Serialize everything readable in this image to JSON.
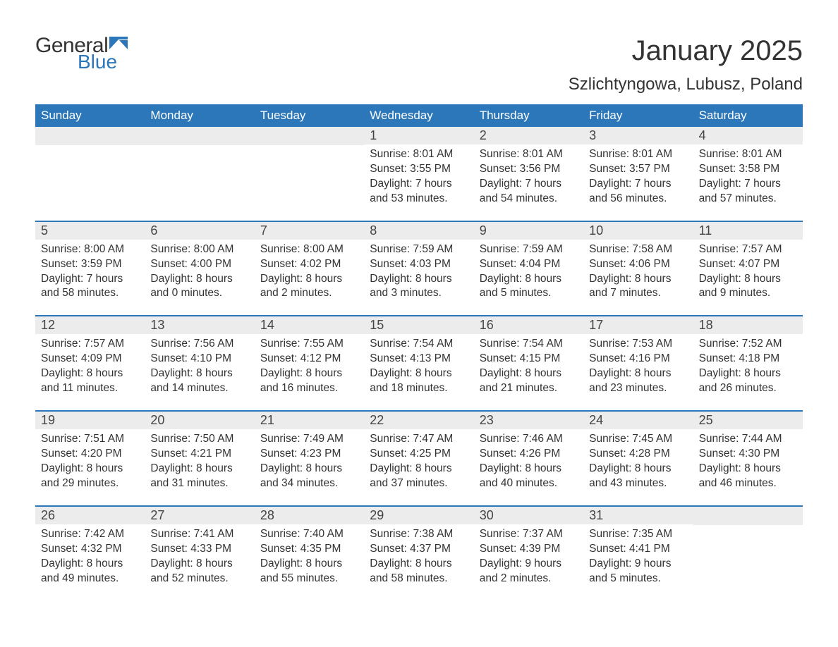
{
  "logo": {
    "text_general": "General",
    "text_blue": "Blue",
    "flag_color": "#2b77ba"
  },
  "title": "January 2025",
  "location": "Szlichtyngowa, Lubusz, Poland",
  "colors": {
    "header_bg": "#2b77ba",
    "header_text": "#ffffff",
    "daynum_bg": "#ececec",
    "text": "#333333",
    "row_border": "#2b77ba",
    "background": "#ffffff"
  },
  "typography": {
    "title_fontsize": 40,
    "location_fontsize": 24,
    "weekday_fontsize": 17,
    "daynum_fontsize": 18,
    "body_fontsize": 15.5,
    "font_family": "Arial"
  },
  "weekdays": [
    "Sunday",
    "Monday",
    "Tuesday",
    "Wednesday",
    "Thursday",
    "Friday",
    "Saturday"
  ],
  "weeks": [
    [
      {
        "blank": true
      },
      {
        "blank": true
      },
      {
        "blank": true
      },
      {
        "day": "1",
        "sunrise": "Sunrise: 8:01 AM",
        "sunset": "Sunset: 3:55 PM",
        "dl1": "Daylight: 7 hours",
        "dl2": "and 53 minutes."
      },
      {
        "day": "2",
        "sunrise": "Sunrise: 8:01 AM",
        "sunset": "Sunset: 3:56 PM",
        "dl1": "Daylight: 7 hours",
        "dl2": "and 54 minutes."
      },
      {
        "day": "3",
        "sunrise": "Sunrise: 8:01 AM",
        "sunset": "Sunset: 3:57 PM",
        "dl1": "Daylight: 7 hours",
        "dl2": "and 56 minutes."
      },
      {
        "day": "4",
        "sunrise": "Sunrise: 8:01 AM",
        "sunset": "Sunset: 3:58 PM",
        "dl1": "Daylight: 7 hours",
        "dl2": "and 57 minutes."
      }
    ],
    [
      {
        "day": "5",
        "sunrise": "Sunrise: 8:00 AM",
        "sunset": "Sunset: 3:59 PM",
        "dl1": "Daylight: 7 hours",
        "dl2": "and 58 minutes."
      },
      {
        "day": "6",
        "sunrise": "Sunrise: 8:00 AM",
        "sunset": "Sunset: 4:00 PM",
        "dl1": "Daylight: 8 hours",
        "dl2": "and 0 minutes."
      },
      {
        "day": "7",
        "sunrise": "Sunrise: 8:00 AM",
        "sunset": "Sunset: 4:02 PM",
        "dl1": "Daylight: 8 hours",
        "dl2": "and 2 minutes."
      },
      {
        "day": "8",
        "sunrise": "Sunrise: 7:59 AM",
        "sunset": "Sunset: 4:03 PM",
        "dl1": "Daylight: 8 hours",
        "dl2": "and 3 minutes."
      },
      {
        "day": "9",
        "sunrise": "Sunrise: 7:59 AM",
        "sunset": "Sunset: 4:04 PM",
        "dl1": "Daylight: 8 hours",
        "dl2": "and 5 minutes."
      },
      {
        "day": "10",
        "sunrise": "Sunrise: 7:58 AM",
        "sunset": "Sunset: 4:06 PM",
        "dl1": "Daylight: 8 hours",
        "dl2": "and 7 minutes."
      },
      {
        "day": "11",
        "sunrise": "Sunrise: 7:57 AM",
        "sunset": "Sunset: 4:07 PM",
        "dl1": "Daylight: 8 hours",
        "dl2": "and 9 minutes."
      }
    ],
    [
      {
        "day": "12",
        "sunrise": "Sunrise: 7:57 AM",
        "sunset": "Sunset: 4:09 PM",
        "dl1": "Daylight: 8 hours",
        "dl2": "and 11 minutes."
      },
      {
        "day": "13",
        "sunrise": "Sunrise: 7:56 AM",
        "sunset": "Sunset: 4:10 PM",
        "dl1": "Daylight: 8 hours",
        "dl2": "and 14 minutes."
      },
      {
        "day": "14",
        "sunrise": "Sunrise: 7:55 AM",
        "sunset": "Sunset: 4:12 PM",
        "dl1": "Daylight: 8 hours",
        "dl2": "and 16 minutes."
      },
      {
        "day": "15",
        "sunrise": "Sunrise: 7:54 AM",
        "sunset": "Sunset: 4:13 PM",
        "dl1": "Daylight: 8 hours",
        "dl2": "and 18 minutes."
      },
      {
        "day": "16",
        "sunrise": "Sunrise: 7:54 AM",
        "sunset": "Sunset: 4:15 PM",
        "dl1": "Daylight: 8 hours",
        "dl2": "and 21 minutes."
      },
      {
        "day": "17",
        "sunrise": "Sunrise: 7:53 AM",
        "sunset": "Sunset: 4:16 PM",
        "dl1": "Daylight: 8 hours",
        "dl2": "and 23 minutes."
      },
      {
        "day": "18",
        "sunrise": "Sunrise: 7:52 AM",
        "sunset": "Sunset: 4:18 PM",
        "dl1": "Daylight: 8 hours",
        "dl2": "and 26 minutes."
      }
    ],
    [
      {
        "day": "19",
        "sunrise": "Sunrise: 7:51 AM",
        "sunset": "Sunset: 4:20 PM",
        "dl1": "Daylight: 8 hours",
        "dl2": "and 29 minutes."
      },
      {
        "day": "20",
        "sunrise": "Sunrise: 7:50 AM",
        "sunset": "Sunset: 4:21 PM",
        "dl1": "Daylight: 8 hours",
        "dl2": "and 31 minutes."
      },
      {
        "day": "21",
        "sunrise": "Sunrise: 7:49 AM",
        "sunset": "Sunset: 4:23 PM",
        "dl1": "Daylight: 8 hours",
        "dl2": "and 34 minutes."
      },
      {
        "day": "22",
        "sunrise": "Sunrise: 7:47 AM",
        "sunset": "Sunset: 4:25 PM",
        "dl1": "Daylight: 8 hours",
        "dl2": "and 37 minutes."
      },
      {
        "day": "23",
        "sunrise": "Sunrise: 7:46 AM",
        "sunset": "Sunset: 4:26 PM",
        "dl1": "Daylight: 8 hours",
        "dl2": "and 40 minutes."
      },
      {
        "day": "24",
        "sunrise": "Sunrise: 7:45 AM",
        "sunset": "Sunset: 4:28 PM",
        "dl1": "Daylight: 8 hours",
        "dl2": "and 43 minutes."
      },
      {
        "day": "25",
        "sunrise": "Sunrise: 7:44 AM",
        "sunset": "Sunset: 4:30 PM",
        "dl1": "Daylight: 8 hours",
        "dl2": "and 46 minutes."
      }
    ],
    [
      {
        "day": "26",
        "sunrise": "Sunrise: 7:42 AM",
        "sunset": "Sunset: 4:32 PM",
        "dl1": "Daylight: 8 hours",
        "dl2": "and 49 minutes."
      },
      {
        "day": "27",
        "sunrise": "Sunrise: 7:41 AM",
        "sunset": "Sunset: 4:33 PM",
        "dl1": "Daylight: 8 hours",
        "dl2": "and 52 minutes."
      },
      {
        "day": "28",
        "sunrise": "Sunrise: 7:40 AM",
        "sunset": "Sunset: 4:35 PM",
        "dl1": "Daylight: 8 hours",
        "dl2": "and 55 minutes."
      },
      {
        "day": "29",
        "sunrise": "Sunrise: 7:38 AM",
        "sunset": "Sunset: 4:37 PM",
        "dl1": "Daylight: 8 hours",
        "dl2": "and 58 minutes."
      },
      {
        "day": "30",
        "sunrise": "Sunrise: 7:37 AM",
        "sunset": "Sunset: 4:39 PM",
        "dl1": "Daylight: 9 hours",
        "dl2": "and 2 minutes."
      },
      {
        "day": "31",
        "sunrise": "Sunrise: 7:35 AM",
        "sunset": "Sunset: 4:41 PM",
        "dl1": "Daylight: 9 hours",
        "dl2": "and 5 minutes."
      },
      {
        "blank": true
      }
    ]
  ]
}
